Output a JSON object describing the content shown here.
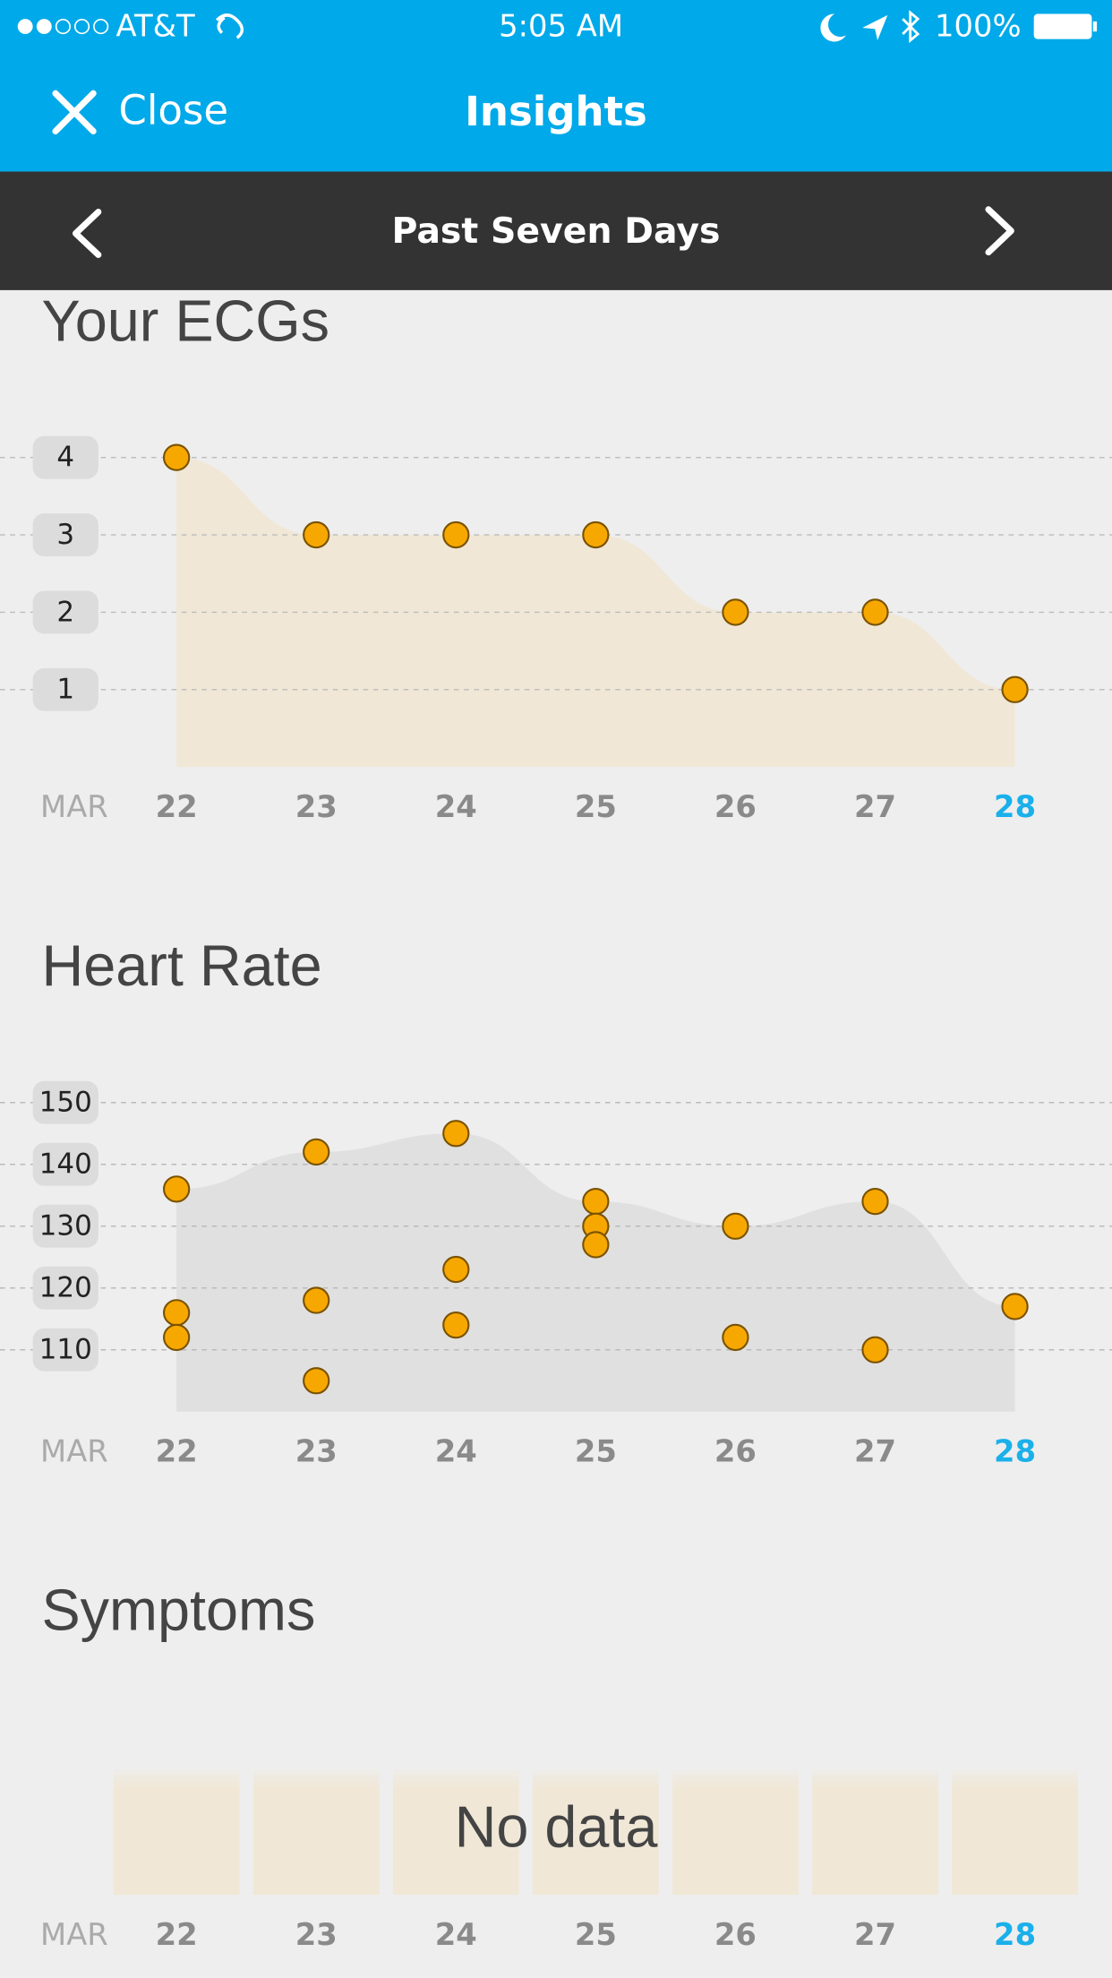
{
  "status_bar": {
    "carrier": "AT&T",
    "time": "5:05 AM",
    "battery": "100%"
  },
  "nav": {
    "close": "Close",
    "title": "Insights"
  },
  "range": {
    "title": "Past Seven Days"
  },
  "chart_data": [
    {
      "type": "scatter",
      "title": "Your ECGs",
      "month": "MAR",
      "x": [
        22,
        23,
        24,
        25,
        26,
        27,
        28
      ],
      "y": [
        4,
        3,
        3,
        3,
        2,
        2,
        1
      ],
      "xlim": [
        22,
        28
      ],
      "xticks": [
        22,
        23,
        24,
        25,
        26,
        27,
        28
      ],
      "ylim": [
        0,
        4.5
      ],
      "yticks": [
        1,
        2,
        3,
        4
      ],
      "grid": true,
      "color": "#f7a800",
      "area_color": "#f0e7d6"
    },
    {
      "type": "scatter",
      "title": "Heart Rate",
      "month": "MAR",
      "x": [
        22,
        22,
        22,
        23,
        23,
        23,
        24,
        24,
        24,
        25,
        25,
        25,
        26,
        26,
        27,
        27,
        28
      ],
      "y": [
        136,
        116,
        112,
        142,
        118,
        105,
        145,
        123,
        114,
        134,
        130,
        127,
        130,
        112,
        134,
        110,
        117
      ],
      "xlim": [
        22,
        28
      ],
      "xticks": [
        22,
        23,
        24,
        25,
        26,
        27,
        28
      ],
      "ylim": [
        100,
        155
      ],
      "yticks": [
        110,
        120,
        130,
        140,
        150
      ],
      "grid": true,
      "color": "#f7a800",
      "area_color": "#e0e0e0"
    },
    {
      "type": "bar",
      "title": "Symptoms",
      "month": "MAR",
      "xlim": [
        22,
        28
      ],
      "xticks": [
        22,
        23,
        24,
        25,
        26,
        27,
        28
      ],
      "empty_text": "No data",
      "color": "#f0e7d6"
    }
  ]
}
